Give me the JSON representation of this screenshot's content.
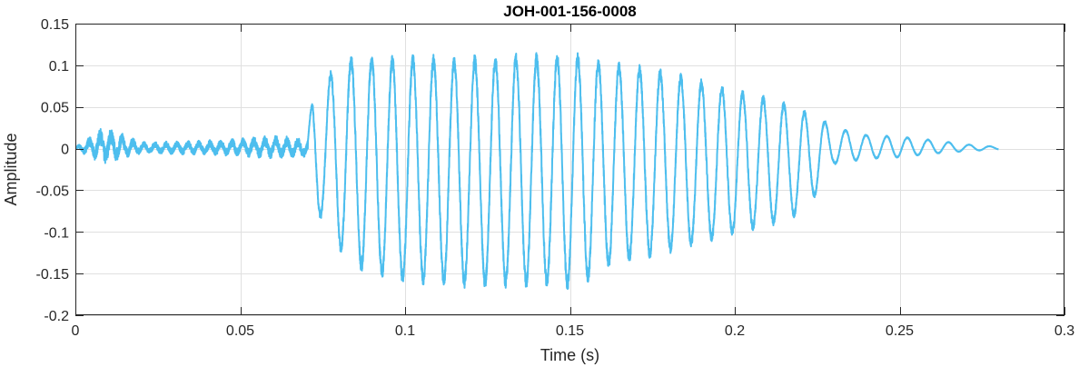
{
  "chart_data": {
    "type": "line",
    "title": "JOH-001-156-0008",
    "xlabel": "Time (s)",
    "ylabel": "Amplitude",
    "xlim": [
      0,
      0.3
    ],
    "ylim": [
      -0.2,
      0.15
    ],
    "xticks": [
      0,
      0.05,
      0.1,
      0.15,
      0.2,
      0.25,
      0.3
    ],
    "xtick_labels": [
      "0",
      "0.05",
      "0.1",
      "0.15",
      "0.2",
      "0.25",
      "0.3"
    ],
    "yticks": [
      -0.2,
      -0.15,
      -0.1,
      -0.05,
      0,
      0.05,
      0.1,
      0.15
    ],
    "ytick_labels": [
      "-0.2",
      "-0.15",
      "-0.1",
      "-0.05",
      "0",
      "0.05",
      "0.1",
      "0.15"
    ],
    "grid": true,
    "series": [
      {
        "color": "#4DBEEE",
        "x": [
          0,
          0.009,
          0.02,
          0.04,
          0.06,
          0.068,
          0.0705,
          0.072,
          0.0735,
          0.075,
          0.079,
          0.083,
          0.086,
          0.09,
          0.095,
          0.1,
          0.11,
          0.12,
          0.13,
          0.14,
          0.15,
          0.155,
          0.16,
          0.17,
          0.18,
          0.19,
          0.2,
          0.21,
          0.215,
          0.22,
          0.225,
          0.23,
          0.24,
          0.25,
          0.26,
          0.27,
          0.28
        ],
        "upper": [
          0.002,
          0.028,
          0.008,
          0.01,
          0.016,
          0.014,
          0.01,
          0.07,
          0.07,
          0.07,
          0.1,
          0.105,
          0.107,
          0.105,
          0.105,
          0.105,
          0.105,
          0.105,
          0.107,
          0.107,
          0.108,
          0.107,
          0.1,
          0.095,
          0.088,
          0.078,
          0.068,
          0.058,
          0.052,
          0.045,
          0.038,
          0.025,
          0.016,
          0.014,
          0.01,
          0.005,
          0.002
        ],
        "lower": [
          -0.002,
          -0.02,
          -0.006,
          -0.008,
          -0.012,
          -0.012,
          -0.01,
          -0.045,
          -0.075,
          -0.085,
          -0.11,
          -0.135,
          -0.14,
          -0.145,
          -0.152,
          -0.155,
          -0.158,
          -0.16,
          -0.16,
          -0.16,
          -0.162,
          -0.155,
          -0.14,
          -0.13,
          -0.12,
          -0.11,
          -0.1,
          -0.09,
          -0.085,
          -0.075,
          -0.052,
          -0.018,
          -0.012,
          -0.01,
          -0.006,
          -0.003,
          -0.001
        ]
      }
    ]
  }
}
